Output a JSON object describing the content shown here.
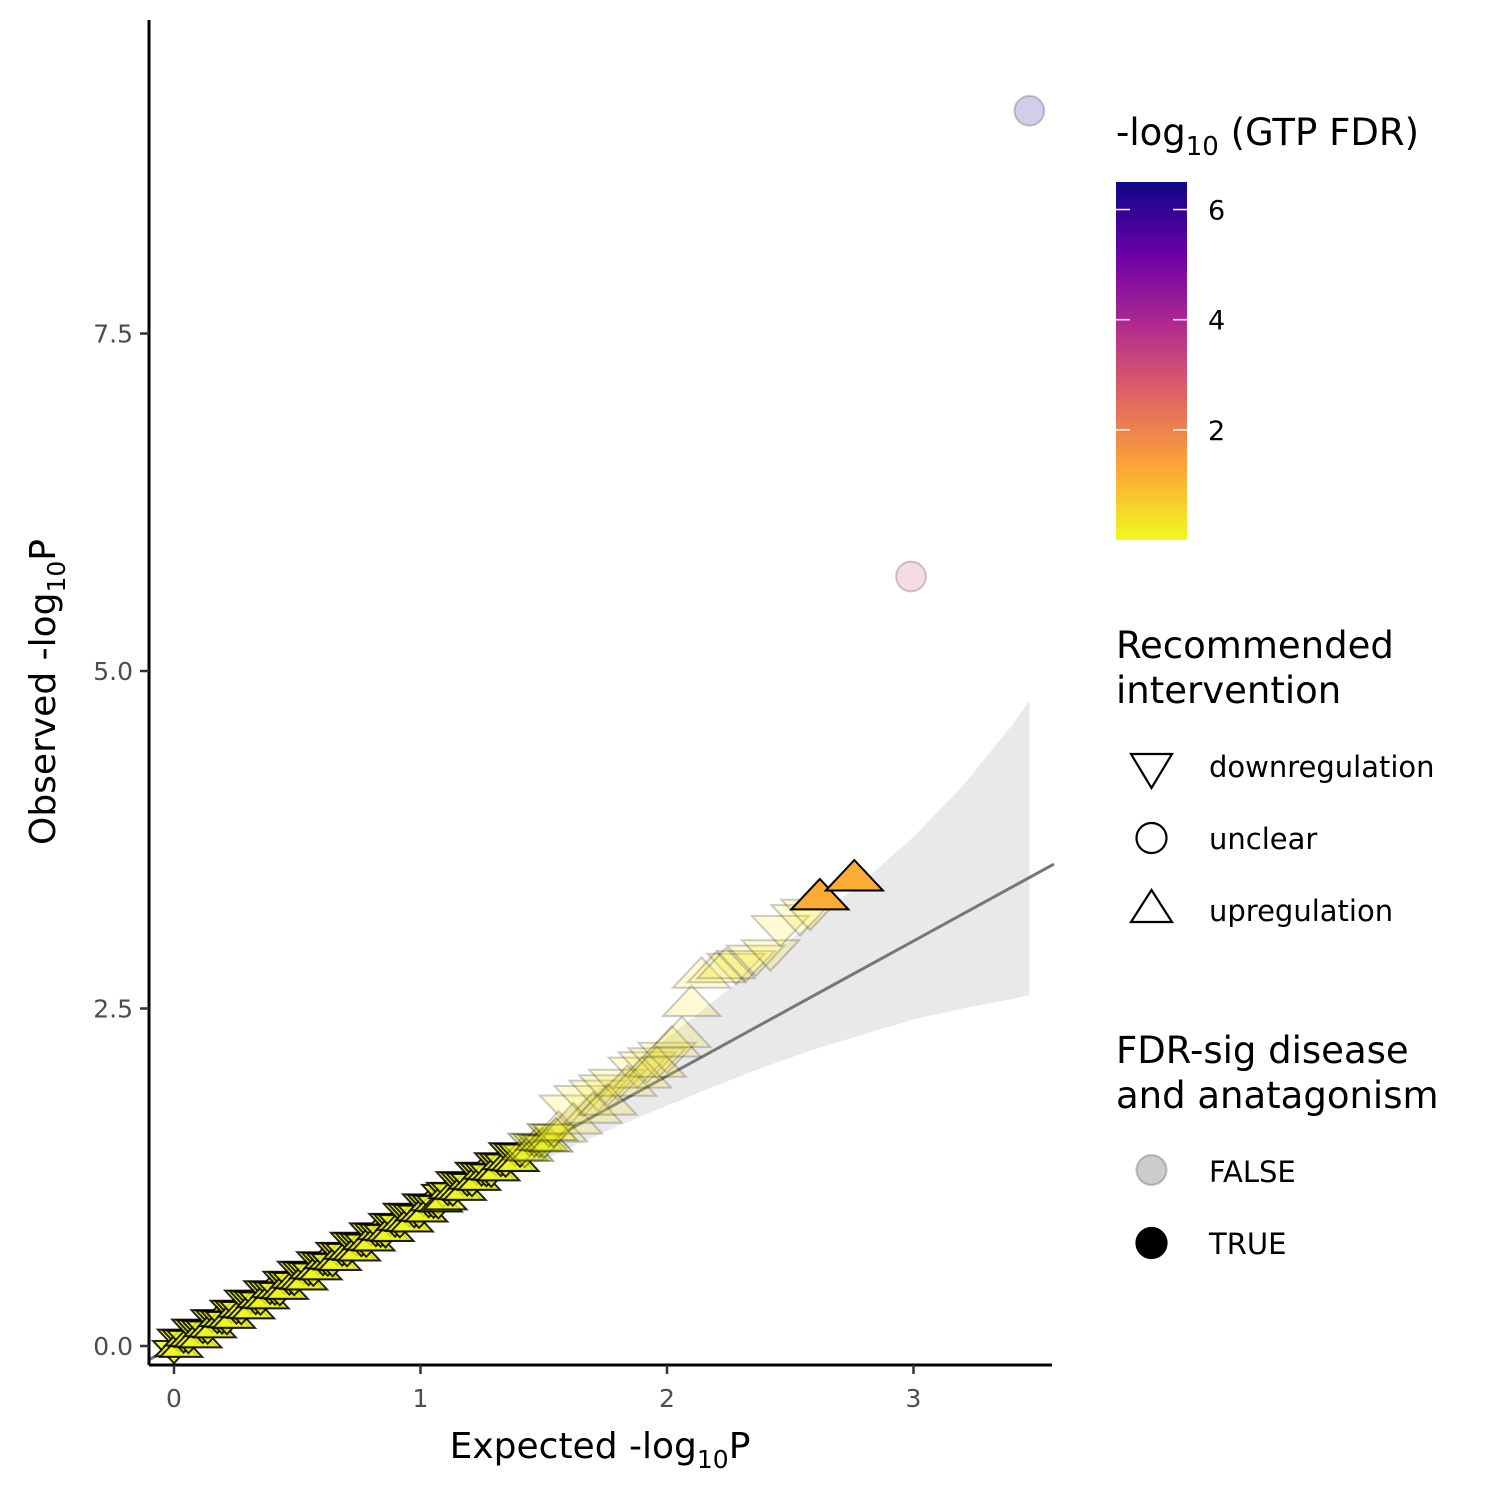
{
  "chart_data": {
    "type": "scatter",
    "xlabel": {
      "main": "Expected  -log",
      "sub": "10",
      "end": "P"
    },
    "ylabel": {
      "main": "Observed  -log",
      "sub": "10",
      "end": "P"
    },
    "xlim": [
      -0.1,
      3.57
    ],
    "ylim": [
      -0.15,
      9.3
    ],
    "x_ticks": [
      {
        "value": 0,
        "label": "0"
      },
      {
        "value": 1,
        "label": "1"
      },
      {
        "value": 2,
        "label": "2"
      },
      {
        "value": 3,
        "label": "3"
      }
    ],
    "y_ticks": [
      {
        "value": 0,
        "label": "0.0"
      },
      {
        "value": 2.5,
        "label": "2.5"
      },
      {
        "value": 5,
        "label": "5.0"
      },
      {
        "value": 7.5,
        "label": "7.5"
      }
    ],
    "reference_line": {
      "x": [
        -0.1,
        3.57
      ],
      "y": [
        -0.1,
        3.57
      ],
      "color": "#777777"
    },
    "confidence_band": {
      "x": [
        0,
        0.5,
        1.0,
        1.5,
        1.8,
        2.0,
        2.2,
        2.4,
        2.6,
        2.8,
        3.0,
        3.2,
        3.4,
        3.47
      ],
      "lower": [
        0,
        0.47,
        0.95,
        1.38,
        1.63,
        1.78,
        1.93,
        2.07,
        2.2,
        2.31,
        2.42,
        2.5,
        2.57,
        2.6
      ],
      "upper": [
        0,
        0.53,
        1.06,
        1.62,
        2.0,
        2.28,
        2.57,
        2.86,
        3.16,
        3.45,
        3.77,
        4.15,
        4.6,
        4.78
      ]
    },
    "series": [
      {
        "shape": "triangle-down",
        "fdr_sig": false,
        "fdr": 0.3,
        "points": [
          [
            1.6,
            1.75
          ],
          [
            1.66,
            1.82
          ],
          [
            1.72,
            1.86
          ],
          [
            1.76,
            1.9
          ],
          [
            1.8,
            1.94
          ],
          [
            1.88,
            2.03
          ],
          [
            1.92,
            2.07
          ],
          [
            1.96,
            2.1
          ],
          [
            2.0,
            2.14
          ],
          [
            2.28,
            2.8
          ],
          [
            2.32,
            2.82
          ],
          [
            2.36,
            2.86
          ],
          [
            2.42,
            2.9
          ],
          [
            2.46,
            3.08
          ],
          [
            2.54,
            3.16
          ],
          [
            2.58,
            3.2
          ]
        ]
      },
      {
        "shape": "triangle-up",
        "fdr_sig": false,
        "fdr": 0.3,
        "points": [
          [
            1.56,
            1.62
          ],
          [
            1.62,
            1.68
          ],
          [
            1.7,
            1.76
          ],
          [
            1.76,
            1.82
          ],
          [
            1.84,
            1.96
          ],
          [
            1.9,
            2.02
          ],
          [
            1.96,
            2.1
          ],
          [
            2.02,
            2.25
          ],
          [
            2.06,
            2.32
          ],
          [
            2.1,
            2.55
          ],
          [
            2.14,
            2.76
          ],
          [
            2.2,
            2.8
          ],
          [
            2.24,
            2.83
          ]
        ]
      },
      {
        "shape": "circle",
        "fdr_sig": false,
        "fdr": 3.0,
        "points": [
          [
            2.99,
            5.7
          ]
        ]
      },
      {
        "shape": "circle",
        "fdr_sig": false,
        "fdr": 6.2,
        "points": [
          [
            3.47,
            9.15
          ]
        ]
      },
      {
        "shape": "triangle-up",
        "fdr_sig": true,
        "fdr": 1.2,
        "points": [
          [
            2.62,
            3.34
          ],
          [
            2.76,
            3.48
          ]
        ]
      }
    ],
    "dense_segment": {
      "x_start": 0.0,
      "x_end": 1.55,
      "count": 160,
      "shape": "mixed-triangles",
      "fdr_sig": true,
      "fdr": 0.05
    },
    "colorbar": {
      "title": {
        "main": "-log",
        "sub": "10",
        "end": " (GTP FDR)"
      },
      "range": [
        0,
        6.5
      ],
      "ticks": [
        {
          "value": 2,
          "label": "2"
        },
        {
          "value": 4,
          "label": "4"
        },
        {
          "value": 6,
          "label": "6"
        }
      ],
      "colors": [
        "#f0f921",
        "#fca636",
        "#e16462",
        "#b12a90",
        "#6a00a8",
        "#0d0887"
      ]
    },
    "legend_shape": {
      "title_lines": [
        "Recommended",
        "intervention"
      ],
      "items": [
        {
          "shape": "triangle-down",
          "label": "downregulation"
        },
        {
          "shape": "circle",
          "label": "unclear"
        },
        {
          "shape": "triangle-up",
          "label": "upregulation"
        }
      ]
    },
    "legend_sig": {
      "title_lines": [
        "FDR-sig disease",
        "and anatagonism"
      ],
      "items": [
        {
          "value": "FALSE",
          "label": "FALSE"
        },
        {
          "value": "TRUE",
          "label": "TRUE"
        }
      ]
    }
  }
}
